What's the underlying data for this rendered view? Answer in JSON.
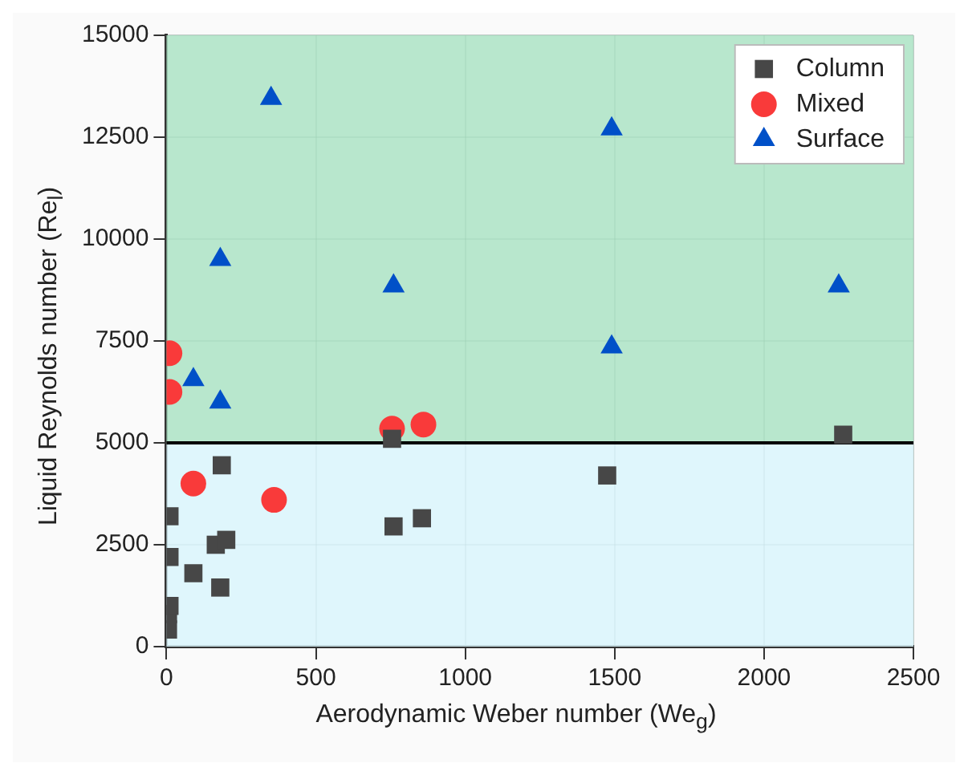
{
  "chart_data": {
    "type": "scatter",
    "xlabel": "Aerodynamic Weber number (We$_{g}$)",
    "ylabel": "Liquid Reynolds number (Re$_{l}$)",
    "xlim": [
      0,
      2500
    ],
    "xticks": [
      0,
      500,
      1000,
      1500,
      2000,
      2500
    ],
    "ylim": [
      0,
      15000
    ],
    "yticks": [
      0,
      2500,
      5000,
      7500,
      10000,
      12500,
      15000
    ],
    "grid": true,
    "legend": "top right",
    "bands": [
      {
        "axis": "y",
        "from": 0,
        "to": 5000,
        "color": "#d9f5fb"
      },
      {
        "axis": "y",
        "from": 5000,
        "to": 15000,
        "color": "#abe3c4"
      }
    ],
    "ref_lines": [
      {
        "axis": "y",
        "value": 5000,
        "color": "#000000",
        "line_style": "solid"
      }
    ],
    "series": [
      {
        "name": "Column",
        "color": "#474747",
        "marker": "square",
        "x": [
          5,
          5,
          10,
          10,
          10,
          90,
          165,
          200,
          180,
          185,
          760,
          855,
          1475,
          2265,
          755
        ],
        "values": [
          420,
          800,
          1000,
          2200,
          3200,
          1800,
          2500,
          2620,
          1450,
          4450,
          2950,
          3150,
          4200,
          5200,
          5100
        ]
      },
      {
        "name": "Mixed",
        "color": "#f93a3a",
        "marker": "circle",
        "x": [
          10,
          10,
          90,
          360,
          755,
          860
        ],
        "values": [
          7200,
          6250,
          4000,
          3600,
          5350,
          5450
        ]
      },
      {
        "name": "Surface",
        "color": "#0050c8",
        "marker": "triangle",
        "x": [
          90,
          180,
          180,
          350,
          760,
          1490,
          1490,
          2250
        ],
        "values": [
          6550,
          6000,
          9500,
          13450,
          8850,
          12700,
          7350,
          8850
        ]
      }
    ]
  }
}
